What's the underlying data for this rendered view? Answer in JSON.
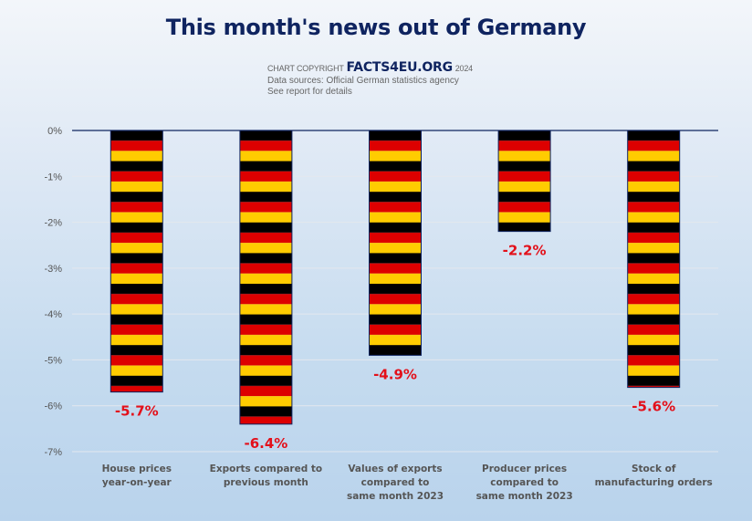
{
  "header": {
    "title": "This month's news out of Germany",
    "copyright_prefix": "CHART COPYRIGHT",
    "brand": "FACTS4EU.ORG",
    "year": "2024",
    "sources": "Data sources: Official German statistics agency",
    "note": "See report for details"
  },
  "colors": {
    "stripe_black": "#000000",
    "stripe_red": "#dd0000",
    "stripe_gold": "#ffcc00",
    "data_label": "#e3101a",
    "title": "#0f2460",
    "axis_line": "#0f2460"
  },
  "chart_data": {
    "type": "bar",
    "title": "This month's news out of Germany",
    "xlabel": "",
    "ylabel": "",
    "ylim": [
      -7,
      0
    ],
    "yticks": [
      0,
      -1,
      -2,
      -3,
      -4,
      -5,
      -6,
      -7
    ],
    "ytick_labels": [
      "0%",
      "-1%",
      "-2%",
      "-3%",
      "-4%",
      "-5%",
      "-6%",
      "-7%"
    ],
    "grid": true,
    "legend": "none",
    "categories": [
      [
        "House prices",
        "year-on-year"
      ],
      [
        "Exports compared to",
        "previous month"
      ],
      [
        "Values of exports",
        "compared to",
        "same month 2023"
      ],
      [
        "Producer prices",
        "compared to",
        "same month 2023"
      ],
      [
        "Stock of",
        "manufacturing orders"
      ]
    ],
    "values": [
      -5.7,
      -6.4,
      -4.9,
      -2.2,
      -5.6
    ],
    "data_labels": [
      "-5.7%",
      "-6.4%",
      "-4.9%",
      "-2.2%",
      "-5.6%"
    ],
    "fill": "German flag stripes (black, red, gold)"
  }
}
